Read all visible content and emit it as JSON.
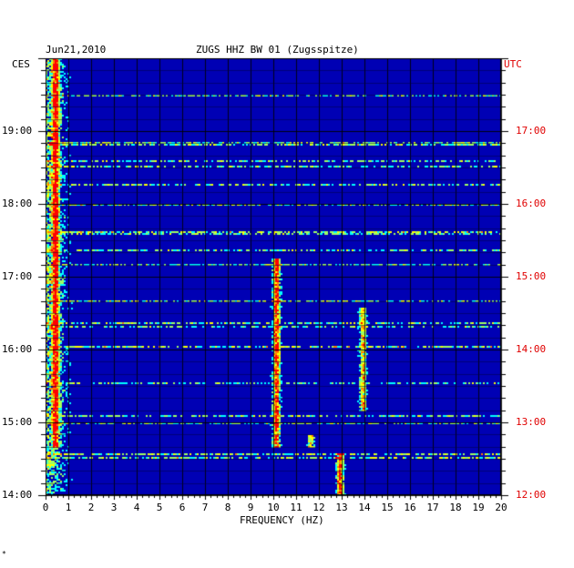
{
  "header": {
    "date": "Jun21,2010",
    "station": "ZUGS HHZ BW 01 (Zugsspitze)",
    "left_tz": "CES",
    "right_tz": "UTC"
  },
  "footnote": "*",
  "chart_data": {
    "type": "heatmap",
    "title": "ZUGS HHZ BW 01 (Zugsspitze)",
    "xlabel": "FREQUENCY (HZ)",
    "xlim": [
      0,
      20
    ],
    "xticks": [
      "0",
      "1",
      "2",
      "3",
      "4",
      "5",
      "6",
      "7",
      "8",
      "9",
      "10",
      "11",
      "12",
      "13",
      "14",
      "15",
      "16",
      "17",
      "18",
      "19",
      "20"
    ],
    "left_axis": {
      "timezone": "CES",
      "labels": [
        "19:00",
        "18:00",
        "17:00",
        "16:00",
        "15:00",
        "14:00"
      ],
      "range": [
        "14:00",
        "20:00"
      ]
    },
    "right_axis": {
      "timezone": "UTC",
      "labels": [
        "17:00",
        "16:00",
        "15:00",
        "14:00",
        "13:00",
        "12:00"
      ],
      "range": [
        "12:00",
        "18:00"
      ],
      "color": "#e00000"
    },
    "colormap": [
      "#00007a",
      "#0000ff",
      "#00a0ff",
      "#00ffff",
      "#a0ff60",
      "#ffff00",
      "#ff8000",
      "#ff0000"
    ],
    "background_color": "#0000b4",
    "grid": true,
    "features": [
      {
        "x_hz": 0.4,
        "t_start": "14:40",
        "t_end": "20:00",
        "level": "high"
      },
      {
        "x_hz": 10.1,
        "t_start": "14:40",
        "t_end": "17:15",
        "level": "high"
      },
      {
        "x_hz": 12.9,
        "t_start": "14:00",
        "t_end": "14:35",
        "level": "high"
      },
      {
        "x_hz": 13.9,
        "t_start": "15:10",
        "t_end": "16:35",
        "level": "medium"
      },
      {
        "x_hz": 11.6,
        "t_start": "14:40",
        "t_end": "14:50",
        "level": "medium"
      }
    ]
  }
}
